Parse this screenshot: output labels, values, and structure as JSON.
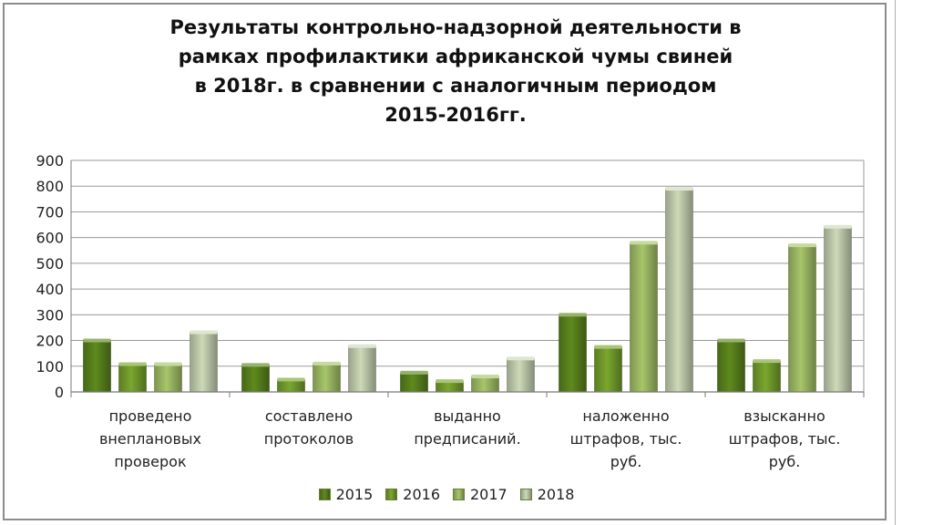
{
  "chart_data": {
    "type": "bar",
    "title_lines": [
      "Результаты контрольно-надзорной деятельности в",
      "рамках профилактики африканской чумы свиней",
      "в 2018г. в сравнении с аналогичным периодом",
      "2015-2016гг."
    ],
    "categories": [
      [
        "проведено",
        "внеплановых",
        "проверок"
      ],
      [
        "составлено",
        "протоколов"
      ],
      [
        "выданно",
        "предписаний."
      ],
      [
        "наложенно",
        "штрафов, тыс.",
        "руб."
      ],
      [
        "взысканно",
        "штрафов, тыс.",
        "руб."
      ]
    ],
    "series": [
      {
        "name": "2015",
        "color": "#5e8a1e",
        "values": [
          200,
          105,
          75,
          300,
          200
        ]
      },
      {
        "name": "2016",
        "color": "#7aa72e",
        "values": [
          108,
          48,
          42,
          175,
          120
        ]
      },
      {
        "name": "2017",
        "color": "#a7c66a",
        "values": [
          108,
          110,
          60,
          580,
          570
        ]
      },
      {
        "name": "2018",
        "color": "#cdd9b8",
        "values": [
          232,
          178,
          130,
          790,
          642
        ]
      }
    ],
    "ylim": [
      0,
      900
    ],
    "yticks": [
      "0",
      "100",
      "200",
      "300",
      "400",
      "500",
      "600",
      "700",
      "800",
      "900"
    ],
    "grid": true,
    "legend_position": "bottom"
  }
}
